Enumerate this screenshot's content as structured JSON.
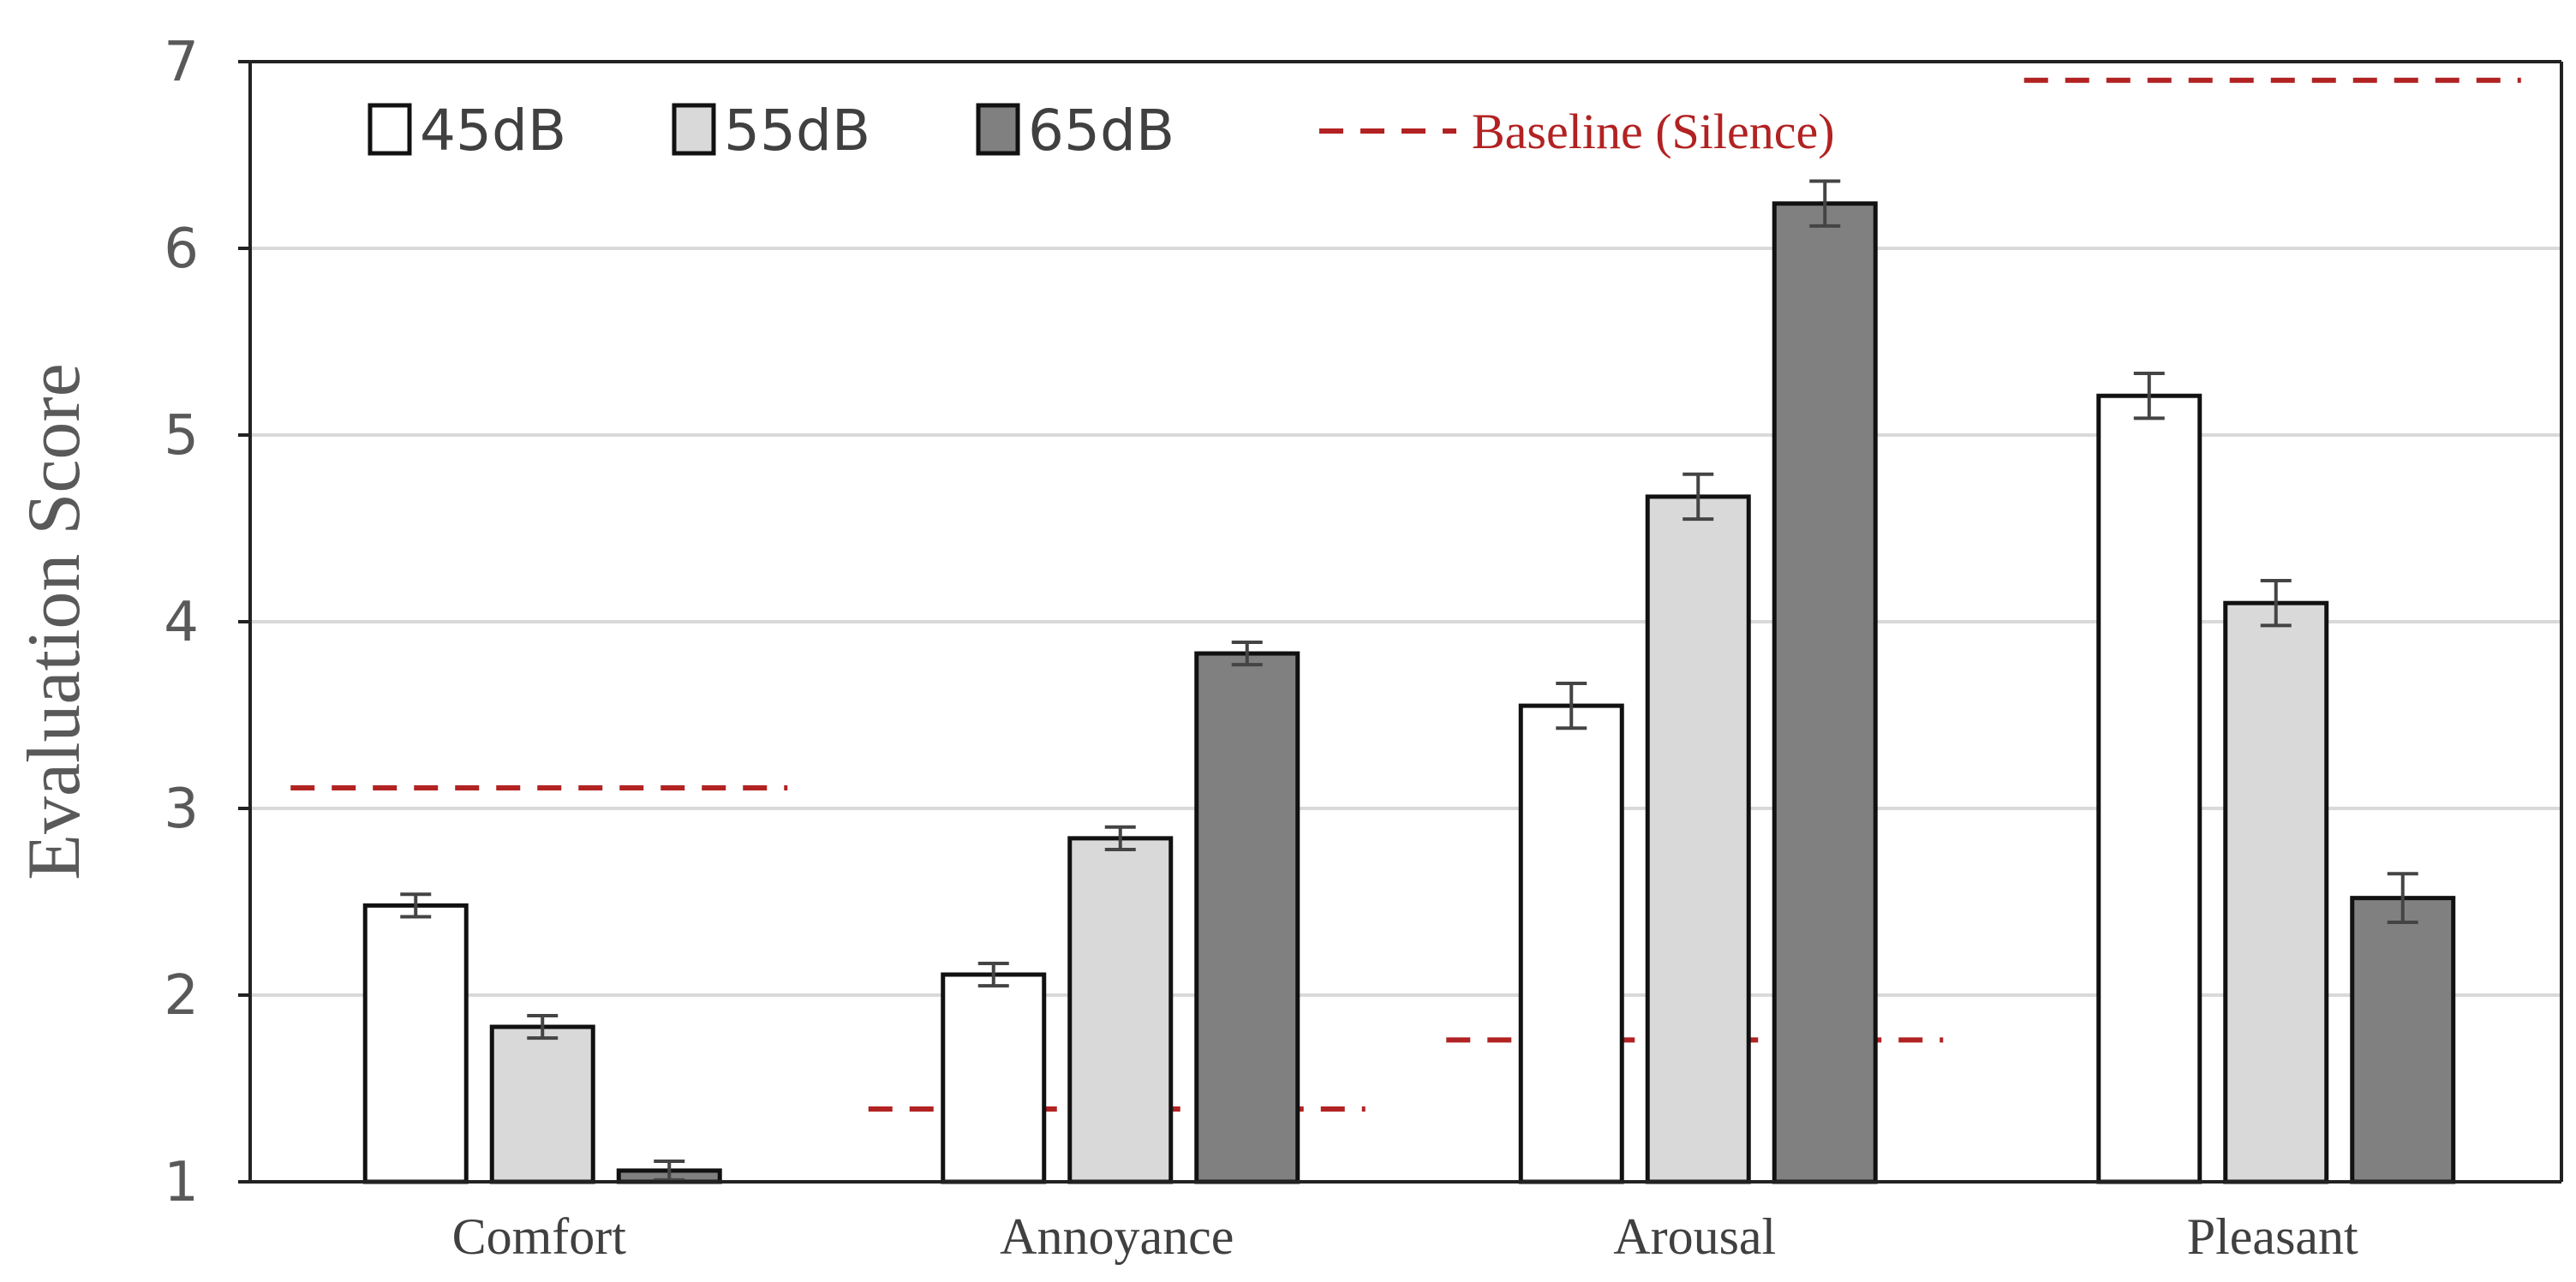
{
  "chart_data": {
    "type": "bar",
    "ylabel": "Evaluation Score",
    "xlabel": "",
    "ylim": [
      1,
      7
    ],
    "yticks": [
      "1",
      "2",
      "3",
      "4",
      "5",
      "6",
      "7"
    ],
    "grid": true,
    "legend_position": "top-left",
    "categories": [
      "Comfort",
      "Annoyance",
      "Arousal",
      "Pleasant"
    ],
    "series": [
      {
        "name": "45dB",
        "color": "#ffffff",
        "values": [
          2.48,
          2.11,
          3.55,
          5.21
        ],
        "errors": [
          0.06,
          0.06,
          0.12,
          0.12
        ]
      },
      {
        "name": "55dB",
        "color": "#d9d9d9",
        "values": [
          1.83,
          2.84,
          4.67,
          4.1
        ],
        "errors": [
          0.06,
          0.06,
          0.12,
          0.12
        ]
      },
      {
        "name": "65dB",
        "color": "#808080",
        "values": [
          1.06,
          3.83,
          6.24,
          2.52
        ],
        "errors": [
          0.05,
          0.06,
          0.12,
          0.13
        ]
      }
    ],
    "baseline": {
      "name": "Baseline (Silence)",
      "color": "#b22222",
      "values": [
        3.11,
        1.39,
        1.76,
        6.9
      ]
    }
  }
}
